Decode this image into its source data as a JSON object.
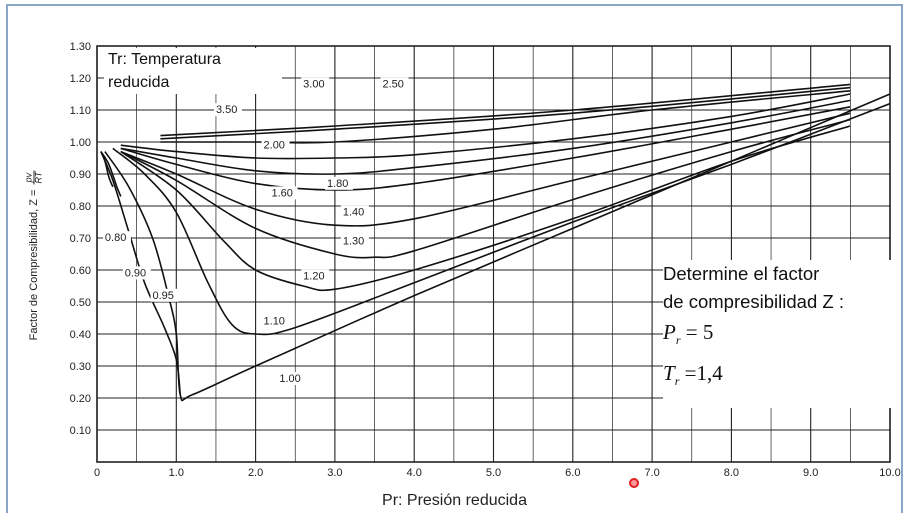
{
  "chart_data": {
    "type": "line",
    "xlabel": "Pr: Presión reducida",
    "ylabel": "Factor de Compresibilidad, Z =",
    "ylabel_fraction": {
      "num": "pv",
      "den": "RT"
    },
    "legend_title": "Tr: Temperatura reducida",
    "xlim": [
      0,
      10
    ],
    "ylim": [
      0,
      1.3
    ],
    "grid": true,
    "x_ticks": [
      "0",
      "1.0",
      "2.0",
      "3.0",
      "4.0",
      "5.0",
      "6.0",
      "7.0",
      "8.0",
      "9.0",
      "10.0"
    ],
    "y_ticks": [
      "0.10",
      "0.20",
      "0.30",
      "0.40",
      "0.50",
      "0.60",
      "0.70",
      "0.80",
      "0.90",
      "1.00",
      "1.10",
      "1.20",
      "1.30"
    ],
    "series": [
      {
        "name": "3.50",
        "x": [
          0.8,
          3.0,
          6.0,
          9.5
        ],
        "y": [
          1.02,
          1.05,
          1.1,
          1.18
        ]
      },
      {
        "name": "3.00",
        "x": [
          0.8,
          3.0,
          6.0,
          9.5
        ],
        "y": [
          1.01,
          1.04,
          1.09,
          1.17
        ]
      },
      {
        "name": "2.50",
        "x": [
          0.8,
          2.0,
          3.0,
          5.0,
          7.0,
          9.5
        ],
        "y": [
          1.0,
          1.0,
          1.0,
          1.04,
          1.1,
          1.16
        ]
      },
      {
        "name": "2.00",
        "x": [
          0.3,
          1.0,
          2.0,
          3.0,
          4.0,
          6.0,
          8.0,
          9.5
        ],
        "y": [
          0.99,
          0.97,
          0.95,
          0.95,
          0.96,
          1.01,
          1.08,
          1.15
        ]
      },
      {
        "name": "1.80",
        "x": [
          0.3,
          1.0,
          2.0,
          3.0,
          4.0,
          6.0,
          8.0,
          9.5
        ],
        "y": [
          0.98,
          0.95,
          0.91,
          0.9,
          0.92,
          0.98,
          1.06,
          1.13
        ]
      },
      {
        "name": "1.60",
        "x": [
          0.3,
          1.0,
          2.0,
          3.0,
          4.0,
          6.0,
          8.0,
          9.5
        ],
        "y": [
          0.98,
          0.93,
          0.87,
          0.85,
          0.87,
          0.95,
          1.04,
          1.11
        ]
      },
      {
        "name": "1.40",
        "x": [
          0.3,
          1.0,
          2.0,
          3.0,
          4.0,
          6.0,
          8.0,
          9.5
        ],
        "y": [
          0.97,
          0.9,
          0.79,
          0.74,
          0.76,
          0.88,
          1.0,
          1.09
        ]
      },
      {
        "name": "1.30",
        "x": [
          0.3,
          1.0,
          2.0,
          3.0,
          3.5,
          4.0,
          6.0,
          8.0,
          9.5
        ],
        "y": [
          0.97,
          0.88,
          0.73,
          0.65,
          0.64,
          0.66,
          0.82,
          0.97,
          1.07
        ]
      },
      {
        "name": "1.20",
        "x": [
          0.3,
          1.0,
          1.6,
          2.0,
          2.6,
          3.0,
          4.0,
          6.0,
          8.0,
          9.5
        ],
        "y": [
          0.97,
          0.85,
          0.69,
          0.6,
          0.55,
          0.54,
          0.6,
          0.76,
          0.94,
          1.05
        ]
      },
      {
        "name": "1.10",
        "x": [
          0.2,
          0.6,
          1.0,
          1.4,
          1.7,
          2.0,
          2.5,
          4.0,
          6.0,
          8.0,
          10.0
        ],
        "y": [
          0.98,
          0.9,
          0.78,
          0.56,
          0.43,
          0.4,
          0.42,
          0.56,
          0.75,
          0.93,
          1.12
        ]
      },
      {
        "name": "1.00",
        "x": [
          0.1,
          0.4,
          0.7,
          0.9,
          1.0,
          1.05,
          1.2,
          2.0,
          4.0,
          6.0,
          8.0,
          10.0
        ],
        "y": [
          0.97,
          0.86,
          0.7,
          0.52,
          0.4,
          0.21,
          0.21,
          0.3,
          0.52,
          0.73,
          0.94,
          1.15
        ]
      },
      {
        "name": "0.95",
        "x": [
          0.05,
          0.2,
          0.4,
          0.6,
          0.85,
          1.0,
          1.05
        ],
        "y": [
          0.97,
          0.88,
          0.72,
          0.56,
          0.42,
          0.32,
          0.21
        ]
      },
      {
        "name": "0.90",
        "x": [
          0.05,
          0.15,
          0.25,
          0.3
        ],
        "y": [
          0.97,
          0.93,
          0.86,
          0.83
        ]
      },
      {
        "name": "0.80",
        "x": [
          0.05,
          0.1,
          0.15,
          0.2
        ],
        "y": [
          0.97,
          0.94,
          0.89,
          0.86
        ]
      }
    ],
    "curve_labels": [
      {
        "text": "3.50",
        "x": 1.5,
        "y": 1.09
      },
      {
        "text": "3.00",
        "x": 2.6,
        "y": 1.17
      },
      {
        "text": "2.50",
        "x": 3.6,
        "y": 1.17
      },
      {
        "text": "2.00",
        "x": 2.1,
        "y": 0.98
      },
      {
        "text": "1.80",
        "x": 2.9,
        "y": 0.86
      },
      {
        "text": "1.60",
        "x": 2.2,
        "y": 0.83
      },
      {
        "text": "1.40",
        "x": 3.1,
        "y": 0.77
      },
      {
        "text": "1.30",
        "x": 3.1,
        "y": 0.68
      },
      {
        "text": "1.20",
        "x": 2.6,
        "y": 0.57
      },
      {
        "text": "1.10",
        "x": 2.1,
        "y": 0.43
      },
      {
        "text": "1.00",
        "x": 2.3,
        "y": 0.25
      },
      {
        "text": "0.80",
        "x": 0.1,
        "y": 0.69
      },
      {
        "text": "0.90",
        "x": 0.35,
        "y": 0.58
      },
      {
        "text": "0.95",
        "x": 0.7,
        "y": 0.51
      }
    ]
  },
  "question": {
    "line1": "Determine el factor",
    "line2": "de compresibilidad Z :",
    "pr_symbol": "P",
    "pr_sub": "r",
    "pr_value": "= 5",
    "tr_symbol": "T",
    "tr_sub": "r",
    "tr_value": "=1,4"
  },
  "colors": {
    "line": "#111111",
    "grid": "#222222",
    "frame": "#8aa6c8",
    "cursor": "#e02020"
  }
}
